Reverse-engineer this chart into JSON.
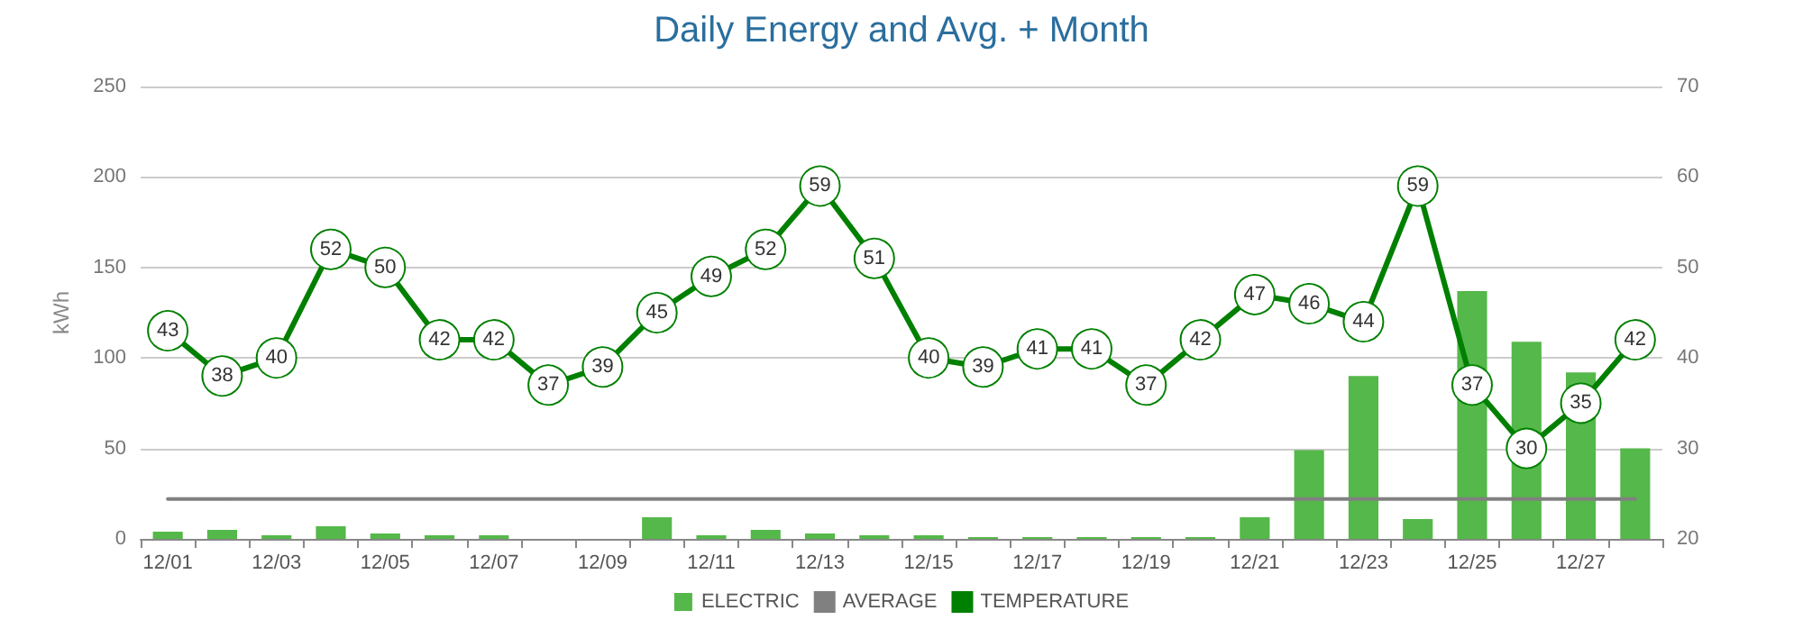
{
  "chart_data": {
    "type": "bar",
    "title": "Daily Energy and Avg. + Month",
    "ylabel": "kWh",
    "categories": [
      "12/01",
      null,
      "12/03",
      null,
      "12/05",
      null,
      "12/07",
      null,
      "12/09",
      null,
      "12/11",
      null,
      "12/13",
      null,
      "12/15",
      null,
      "12/17",
      null,
      "12/19",
      null,
      "12/21",
      null,
      "12/23",
      null,
      "12/25",
      null,
      "12/27",
      null
    ],
    "series": [
      {
        "name": "ELECTRIC",
        "color": "#55b84a",
        "values": [
          4,
          5,
          2,
          7,
          3,
          2,
          2,
          0,
          0,
          12,
          2,
          5,
          3,
          2,
          2,
          1,
          1,
          1,
          1,
          1,
          12,
          49,
          90,
          11,
          137,
          109,
          92,
          50
        ]
      },
      {
        "name": "AVERAGE",
        "type": "line",
        "marker": "none",
        "color": "#808080",
        "values": [
          22,
          22,
          22,
          22,
          22,
          22,
          22,
          22,
          22,
          22,
          22,
          22,
          22,
          22,
          22,
          22,
          22,
          22,
          22,
          22,
          22,
          22,
          22,
          22,
          22,
          22,
          22,
          22
        ]
      },
      {
        "name": "TEMPERATURE",
        "type": "line",
        "axis": "y2",
        "color": "#008000",
        "values": [
          43,
          38,
          40,
          52,
          50,
          42,
          42,
          37,
          39,
          45,
          49,
          52,
          59,
          51,
          40,
          39,
          41,
          41,
          37,
          42,
          47,
          46,
          44,
          59,
          37,
          30,
          35,
          42
        ],
        "value_labels": [
          "43",
          "38",
          "40",
          "52",
          "50",
          "42",
          "42",
          "37",
          "39",
          "45",
          "49",
          "52",
          "59",
          "51",
          "40",
          "39",
          "41",
          "41",
          "37",
          "42",
          "47",
          "46",
          "44",
          "59",
          "37",
          "30",
          "35",
          "42"
        ]
      }
    ],
    "ylim": [
      0,
      250
    ],
    "yticks": [
      0,
      50,
      100,
      150,
      200,
      250
    ],
    "y2lim": [
      20,
      70
    ],
    "y2ticks": [
      20,
      30,
      40,
      50,
      60,
      70
    ],
    "grid": "y",
    "legend": "bottom",
    "marker": "circle",
    "line_style": "solid"
  }
}
